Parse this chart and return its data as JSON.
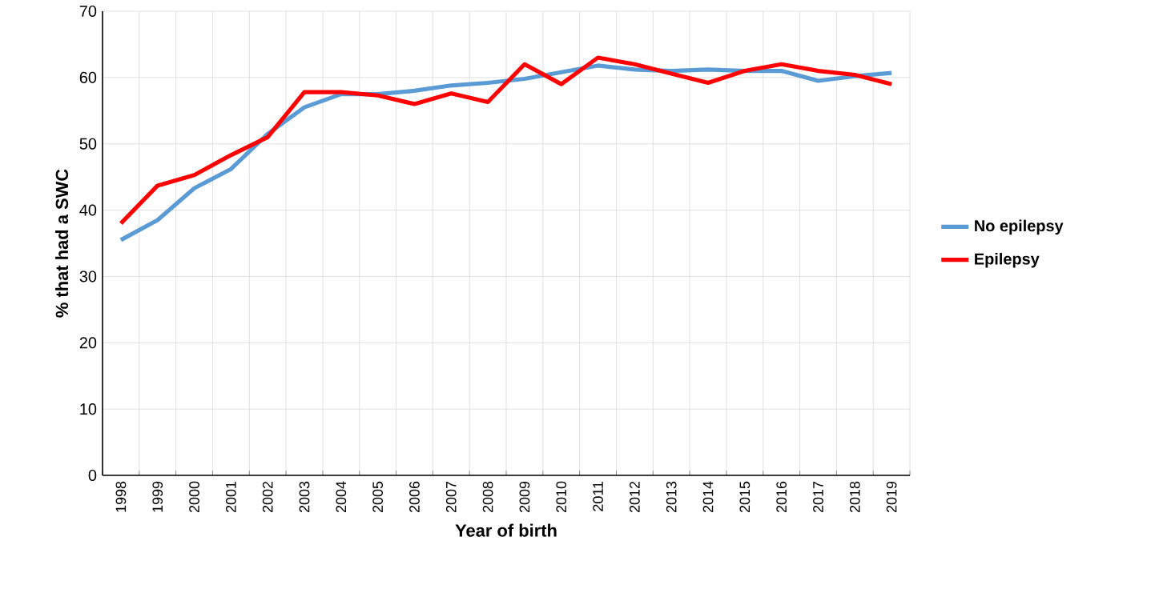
{
  "chart_data": {
    "type": "line",
    "xlabel": "Year of birth",
    "ylabel": "% that had a SWC",
    "categories": [
      "1998",
      "1999",
      "2000",
      "2001",
      "2002",
      "2003",
      "2004",
      "2005",
      "2006",
      "2007",
      "2008",
      "2009",
      "2010",
      "2011",
      "2012",
      "2013",
      "2014",
      "2015",
      "2016",
      "2017",
      "2018",
      "2019"
    ],
    "series": [
      {
        "name": "No epilepsy",
        "color": "#5b9bd5",
        "values": [
          35.5,
          38.5,
          43.3,
          46.2,
          51.5,
          55.5,
          57.5,
          57.5,
          58,
          58.8,
          59.2,
          59.8,
          60.8,
          61.8,
          61.2,
          61,
          61.2,
          61,
          61,
          59.5,
          60.2,
          60.7
        ]
      },
      {
        "name": "Epilepsy",
        "color": "#ff0000",
        "values": [
          38,
          43.7,
          45.3,
          48.3,
          51,
          57.8,
          57.8,
          57.3,
          56,
          57.6,
          56.3,
          62,
          59,
          63,
          62,
          60.6,
          59.2,
          61,
          62,
          61,
          60.4,
          59
        ]
      }
    ],
    "ylim": [
      0,
      70
    ],
    "yticks": [
      0,
      10,
      20,
      30,
      40,
      50,
      60,
      70
    ],
    "grid": true,
    "legend": "right",
    "marker": "none",
    "line_style": "solid"
  }
}
